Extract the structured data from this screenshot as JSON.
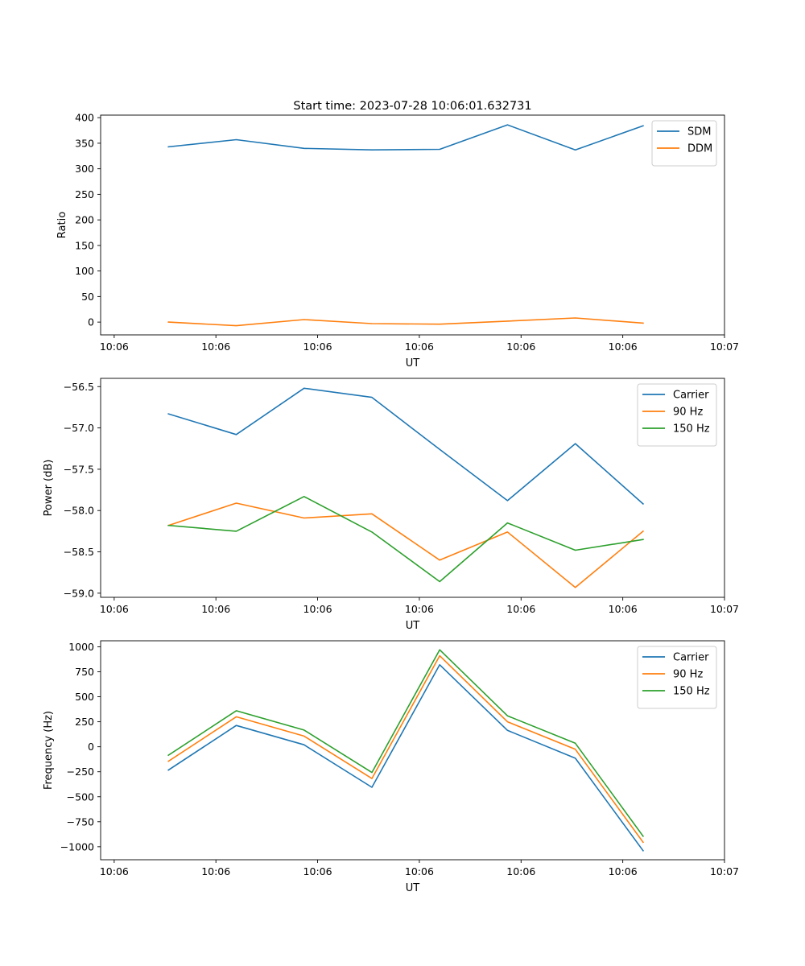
{
  "chart_data": [
    {
      "type": "line",
      "title": "Start time: 2023-07-28 10:06:01.632731",
      "xlabel": "UT",
      "ylabel": "Ratio",
      "xlim": [
        0,
        9.2
      ],
      "ylim": [
        -25,
        405
      ],
      "x_ticks": [
        0.2,
        1.7,
        3.2,
        4.7,
        6.2,
        7.7,
        9.2
      ],
      "x_tick_labels": [
        "10:06",
        "10:06",
        "10:06",
        "10:06",
        "10:06",
        "10:06",
        "10:07"
      ],
      "y_ticks": [
        0,
        50,
        100,
        150,
        200,
        250,
        300,
        350,
        400
      ],
      "y_tick_labels": [
        "0",
        "50",
        "100",
        "150",
        "200",
        "250",
        "300",
        "350",
        "400"
      ],
      "x": [
        1,
        2,
        3,
        4,
        5,
        6,
        7,
        8
      ],
      "legend_position": "top-right",
      "series": [
        {
          "name": "SDM",
          "color": "#1f77b4",
          "values": [
            343,
            357,
            340,
            337,
            338,
            386,
            337,
            384
          ]
        },
        {
          "name": "DDM",
          "color": "#ff7f0e",
          "values": [
            0,
            -7,
            5,
            -3,
            -4,
            2,
            8,
            -2
          ]
        }
      ]
    },
    {
      "type": "line",
      "title": "",
      "xlabel": "UT",
      "ylabel": "Power (dB)",
      "xlim": [
        0,
        9.2
      ],
      "ylim": [
        -59.05,
        -56.4
      ],
      "x_ticks": [
        0.2,
        1.7,
        3.2,
        4.7,
        6.2,
        7.7,
        9.2
      ],
      "x_tick_labels": [
        "10:06",
        "10:06",
        "10:06",
        "10:06",
        "10:06",
        "10:06",
        "10:07"
      ],
      "y_ticks": [
        -59.0,
        -58.5,
        -58.0,
        -57.5,
        -57.0,
        -56.5
      ],
      "y_tick_labels": [
        "−59.0",
        "−58.5",
        "−58.0",
        "−57.5",
        "−57.0",
        "−56.5"
      ],
      "x": [
        1,
        2,
        3,
        4,
        5,
        6,
        7,
        8
      ],
      "legend_position": "top-right",
      "series": [
        {
          "name": "Carrier",
          "color": "#1f77b4",
          "values": [
            -56.83,
            -57.08,
            -56.52,
            -56.63,
            -57.26,
            -57.88,
            -57.19,
            -57.92
          ]
        },
        {
          "name": "90 Hz",
          "color": "#ff7f0e",
          "values": [
            -58.18,
            -57.91,
            -58.09,
            -58.04,
            -58.6,
            -58.26,
            -58.93,
            -58.25
          ]
        },
        {
          "name": "150 Hz",
          "color": "#2ca02c",
          "values": [
            -58.18,
            -58.25,
            -57.83,
            -58.26,
            -58.86,
            -58.15,
            -58.48,
            -58.35
          ]
        }
      ]
    },
    {
      "type": "line",
      "title": "",
      "xlabel": "UT",
      "ylabel": "Frequency (Hz)",
      "xlim": [
        0,
        9.2
      ],
      "ylim": [
        -1130,
        1060
      ],
      "x_ticks": [
        0.2,
        1.7,
        3.2,
        4.7,
        6.2,
        7.7,
        9.2
      ],
      "x_tick_labels": [
        "10:06",
        "10:06",
        "10:06",
        "10:06",
        "10:06",
        "10:06",
        "10:07"
      ],
      "y_ticks": [
        -1000,
        -750,
        -500,
        -250,
        0,
        250,
        500,
        750,
        1000
      ],
      "y_tick_labels": [
        "−1000",
        "−750",
        "−500",
        "−250",
        "0",
        "250",
        "500",
        "750",
        "1000"
      ],
      "x": [
        1,
        2,
        3,
        4,
        5,
        6,
        7,
        8
      ],
      "legend_position": "top-right",
      "series": [
        {
          "name": "Carrier",
          "color": "#1f77b4",
          "values": [
            -233,
            213,
            20,
            -405,
            820,
            164,
            -115,
            -1040
          ]
        },
        {
          "name": "90 Hz",
          "color": "#ff7f0e",
          "values": [
            -145,
            300,
            107,
            -318,
            910,
            250,
            -25,
            -955
          ]
        },
        {
          "name": "150 Hz",
          "color": "#2ca02c",
          "values": [
            -85,
            360,
            167,
            -257,
            970,
            310,
            35,
            -895
          ]
        }
      ]
    }
  ]
}
